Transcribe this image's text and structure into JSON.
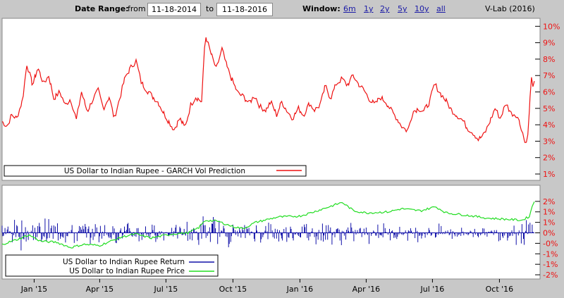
{
  "toolbar": {
    "date_range_label": "Date Range:",
    "from_label": "from",
    "from_value": "11-18-2014",
    "to_label": "to",
    "to_value": "11-18-2016",
    "window_label": "Window:",
    "window_options": [
      "6m",
      "1y",
      "2y",
      "5y",
      "10y",
      "all"
    ],
    "credit": "V-Lab (2016)"
  },
  "colors": {
    "volatility": "#ee1111",
    "return": "#1010a8",
    "price": "#22dd22",
    "panel_bg": "#ffffff",
    "frame_bg": "#c8c8c8"
  },
  "chart_data": [
    {
      "type": "line",
      "legend": [
        "US Dollar to Indian Rupee - GARCH Vol Prediction"
      ],
      "legend_position": "bottom-left",
      "ylabel_ticks": [
        "1%",
        "2%",
        "3%",
        "4%",
        "5%",
        "6%",
        "7%",
        "8%",
        "9%",
        "10%"
      ],
      "ylim": [
        0.7,
        10.4
      ],
      "xlim": [
        "2014-11-18",
        "2016-11-18"
      ],
      "grid": false,
      "series": [
        {
          "name": "US Dollar to Indian Rupee - GARCH Vol Prediction",
          "points": [
            [
              "2014-11-18",
              4.2
            ],
            [
              "2014-11-25",
              3.9
            ],
            [
              "2014-12-01",
              4.6
            ],
            [
              "2014-12-08",
              4.4
            ],
            [
              "2014-12-16",
              5.5
            ],
            [
              "2014-12-22",
              7.7
            ],
            [
              "2014-12-30",
              6.4
            ],
            [
              "2015-01-06",
              7.5
            ],
            [
              "2015-01-14",
              6.5
            ],
            [
              "2015-01-21",
              7.0
            ],
            [
              "2015-01-28",
              5.6
            ],
            [
              "2015-02-05",
              6.0
            ],
            [
              "2015-02-13",
              5.2
            ],
            [
              "2015-02-20",
              5.6
            ],
            [
              "2015-02-28",
              4.3
            ],
            [
              "2015-03-07",
              6.0
            ],
            [
              "2015-03-15",
              4.8
            ],
            [
              "2015-03-22",
              5.5
            ],
            [
              "2015-03-30",
              6.1
            ],
            [
              "2015-04-06",
              5.0
            ],
            [
              "2015-04-14",
              5.7
            ],
            [
              "2015-04-21",
              4.4
            ],
            [
              "2015-04-29",
              5.7
            ],
            [
              "2015-05-06",
              6.9
            ],
            [
              "2015-05-14",
              7.5
            ],
            [
              "2015-05-21",
              7.9
            ],
            [
              "2015-05-28",
              6.6
            ],
            [
              "2015-06-05",
              6.1
            ],
            [
              "2015-06-13",
              5.7
            ],
            [
              "2015-06-20",
              5.4
            ],
            [
              "2015-06-28",
              4.7
            ],
            [
              "2015-07-05",
              4.2
            ],
            [
              "2015-07-12",
              3.7
            ],
            [
              "2015-07-20",
              4.4
            ],
            [
              "2015-07-27",
              3.8
            ],
            [
              "2015-08-04",
              5.2
            ],
            [
              "2015-08-11",
              5.7
            ],
            [
              "2015-08-19",
              5.4
            ],
            [
              "2015-08-24",
              9.5
            ],
            [
              "2015-09-01",
              8.3
            ],
            [
              "2015-09-08",
              7.4
            ],
            [
              "2015-09-16",
              8.6
            ],
            [
              "2015-09-23",
              7.5
            ],
            [
              "2015-10-01",
              6.6
            ],
            [
              "2015-10-08",
              5.9
            ],
            [
              "2015-10-16",
              5.7
            ],
            [
              "2015-10-23",
              5.3
            ],
            [
              "2015-10-31",
              5.8
            ],
            [
              "2015-11-07",
              5.1
            ],
            [
              "2015-11-15",
              4.9
            ],
            [
              "2015-11-22",
              5.4
            ],
            [
              "2015-11-30",
              4.6
            ],
            [
              "2015-12-07",
              5.4
            ],
            [
              "2015-12-15",
              4.8
            ],
            [
              "2015-12-22",
              4.4
            ],
            [
              "2015-12-30",
              5.0
            ],
            [
              "2016-01-06",
              4.6
            ],
            [
              "2016-01-14",
              5.3
            ],
            [
              "2016-01-21",
              4.9
            ],
            [
              "2016-01-29",
              5.2
            ],
            [
              "2016-02-05",
              6.4
            ],
            [
              "2016-02-12",
              5.6
            ],
            [
              "2016-02-20",
              6.5
            ],
            [
              "2016-02-28",
              6.8
            ],
            [
              "2016-03-06",
              6.4
            ],
            [
              "2016-03-14",
              7.0
            ],
            [
              "2016-03-21",
              6.5
            ],
            [
              "2016-03-29",
              6.1
            ],
            [
              "2016-04-05",
              5.6
            ],
            [
              "2016-04-13",
              5.2
            ],
            [
              "2016-04-20",
              5.7
            ],
            [
              "2016-04-28",
              5.4
            ],
            [
              "2016-05-05",
              4.9
            ],
            [
              "2016-05-13",
              4.4
            ],
            [
              "2016-05-20",
              3.9
            ],
            [
              "2016-05-28",
              3.6
            ],
            [
              "2016-06-04",
              4.8
            ],
            [
              "2016-06-12",
              5.0
            ],
            [
              "2016-06-19",
              4.8
            ],
            [
              "2016-06-27",
              5.4
            ],
            [
              "2016-07-04",
              6.5
            ],
            [
              "2016-07-12",
              5.9
            ],
            [
              "2016-07-19",
              5.5
            ],
            [
              "2016-07-27",
              4.9
            ],
            [
              "2016-08-03",
              4.6
            ],
            [
              "2016-08-11",
              4.3
            ],
            [
              "2016-08-18",
              3.8
            ],
            [
              "2016-08-26",
              3.5
            ],
            [
              "2016-09-02",
              3.1
            ],
            [
              "2016-09-10",
              3.4
            ],
            [
              "2016-09-17",
              4.1
            ],
            [
              "2016-09-25",
              5.0
            ],
            [
              "2016-10-02",
              4.4
            ],
            [
              "2016-10-10",
              5.3
            ],
            [
              "2016-10-17",
              4.7
            ],
            [
              "2016-10-25",
              4.6
            ],
            [
              "2016-11-01",
              3.7
            ],
            [
              "2016-11-05",
              2.9
            ],
            [
              "2016-11-09",
              3.3
            ],
            [
              "2016-11-12",
              5.6
            ],
            [
              "2016-11-14",
              6.8
            ],
            [
              "2016-11-17",
              6.3
            ],
            [
              "2016-11-18",
              6.5
            ]
          ]
        }
      ]
    },
    {
      "type": "line",
      "legend": [
        "US Dollar to Indian Rupee Return",
        "US Dollar to Indian Rupee Price"
      ],
      "legend_position": "bottom-left",
      "ylabel_ticks": [
        "-2%",
        "-1%",
        "-1%",
        "-0%",
        "0%",
        "1%",
        "1%",
        "2%"
      ],
      "ylim": [
        -2.2,
        2.2
      ],
      "xlim": [
        "2014-11-18",
        "2016-11-18"
      ],
      "x_tick_labels": [
        "Jan '15",
        "Apr '15",
        "Jul '15",
        "Oct '15",
        "Jan '16",
        "Apr '16",
        "Jul '16",
        "Oct '16"
      ],
      "grid": false,
      "series": [
        {
          "name": "US Dollar to Indian Rupee Return",
          "kind": "bar",
          "amplitude_profile": [
            [
              "2014-11-18",
              0.5
            ],
            [
              "2014-12-15",
              0.9
            ],
            [
              "2015-01-15",
              0.7
            ],
            [
              "2015-03-01",
              0.6
            ],
            [
              "2015-05-15",
              0.55
            ],
            [
              "2015-07-15",
              0.35
            ],
            [
              "2015-08-24",
              0.9
            ],
            [
              "2015-10-15",
              0.5
            ],
            [
              "2016-01-15",
              0.55
            ],
            [
              "2016-03-01",
              0.6
            ],
            [
              "2016-05-15",
              0.35
            ],
            [
              "2016-07-15",
              0.45
            ],
            [
              "2016-09-15",
              0.25
            ],
            [
              "2016-10-15",
              0.45
            ],
            [
              "2016-11-18",
              0.9
            ]
          ]
        },
        {
          "name": "US Dollar to Indian Rupee Price",
          "points": [
            [
              "2014-11-18",
              -0.55
            ],
            [
              "2014-12-10",
              -0.3
            ],
            [
              "2014-12-25",
              -0.1
            ],
            [
              "2015-01-10",
              -0.4
            ],
            [
              "2015-02-01",
              -0.45
            ],
            [
              "2015-02-20",
              -0.7
            ],
            [
              "2015-03-10",
              -0.55
            ],
            [
              "2015-04-01",
              -0.6
            ],
            [
              "2015-05-01",
              -0.2
            ],
            [
              "2015-05-20",
              -0.05
            ],
            [
              "2015-06-10",
              -0.25
            ],
            [
              "2015-06-25",
              -0.15
            ],
            [
              "2015-07-10",
              -0.05
            ],
            [
              "2015-08-01",
              0.0
            ],
            [
              "2015-08-15",
              0.25
            ],
            [
              "2015-08-24",
              0.6
            ],
            [
              "2015-09-10",
              0.55
            ],
            [
              "2015-10-01",
              0.3
            ],
            [
              "2015-10-15",
              0.2
            ],
            [
              "2015-11-01",
              0.5
            ],
            [
              "2015-12-01",
              0.75
            ],
            [
              "2016-01-01",
              0.8
            ],
            [
              "2016-01-20",
              1.0
            ],
            [
              "2016-02-15",
              1.3
            ],
            [
              "2016-02-28",
              1.45
            ],
            [
              "2016-03-15",
              1.05
            ],
            [
              "2016-04-01",
              0.95
            ],
            [
              "2016-05-01",
              1.0
            ],
            [
              "2016-05-20",
              1.15
            ],
            [
              "2016-06-15",
              1.05
            ],
            [
              "2016-07-05",
              1.25
            ],
            [
              "2016-07-20",
              0.95
            ],
            [
              "2016-08-15",
              0.85
            ],
            [
              "2016-09-15",
              0.7
            ],
            [
              "2016-10-10",
              0.65
            ],
            [
              "2016-11-01",
              0.6
            ],
            [
              "2016-11-12",
              0.8
            ],
            [
              "2016-11-14",
              1.2
            ],
            [
              "2016-11-18",
              1.5
            ]
          ]
        }
      ]
    }
  ]
}
